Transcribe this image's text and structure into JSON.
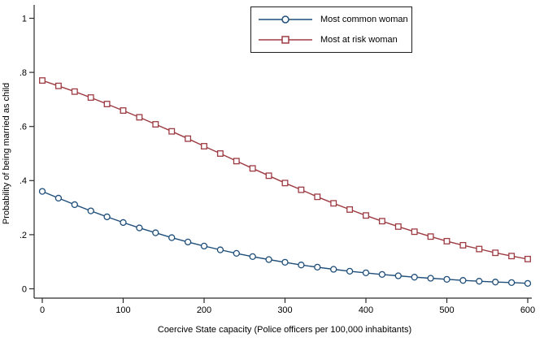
{
  "figure": {
    "background": "#ffffff",
    "axis_color": "#2b2b2b",
    "legend_border_color": "#1f1f1f"
  },
  "chart_data": {
    "type": "line",
    "title": "",
    "xlabel": "Coercive State capacity (Police officers per 100,000 inhabitants)",
    "ylabel": "Probability of being married as child",
    "xlim": [
      0,
      600
    ],
    "ylim": [
      0,
      1
    ],
    "xticks": [
      0,
      100,
      200,
      300,
      400,
      500,
      600
    ],
    "xtick_labels": [
      "0",
      "100",
      "200",
      "300",
      "400",
      "500",
      "600"
    ],
    "yticks": [
      0,
      0.2,
      0.4,
      0.6,
      0.8,
      1
    ],
    "ytick_labels": [
      "0",
      ".2",
      ".4",
      ".6",
      ".8",
      "1"
    ],
    "grid": false,
    "legend_position": "top-center",
    "x": [
      0,
      20,
      40,
      60,
      80,
      100,
      120,
      140,
      160,
      180,
      200,
      220,
      240,
      260,
      280,
      300,
      320,
      340,
      360,
      380,
      400,
      420,
      440,
      460,
      480,
      500,
      520,
      540,
      560,
      580,
      600
    ],
    "series": [
      {
        "name": "Most common woman",
        "marker": "circle",
        "color": "#1e4e79",
        "values": [
          0.36,
          0.335,
          0.311,
          0.288,
          0.266,
          0.245,
          0.225,
          0.207,
          0.189,
          0.173,
          0.158,
          0.144,
          0.131,
          0.119,
          0.108,
          0.098,
          0.088,
          0.08,
          0.072,
          0.065,
          0.059,
          0.053,
          0.048,
          0.043,
          0.039,
          0.035,
          0.031,
          0.028,
          0.025,
          0.023,
          0.02
        ]
      },
      {
        "name": "Most at risk woman",
        "marker": "square",
        "color": "#9d3b42",
        "values": [
          0.77,
          0.75,
          0.729,
          0.707,
          0.683,
          0.659,
          0.634,
          0.608,
          0.582,
          0.555,
          0.527,
          0.5,
          0.472,
          0.445,
          0.418,
          0.391,
          0.366,
          0.34,
          0.316,
          0.293,
          0.271,
          0.25,
          0.23,
          0.211,
          0.193,
          0.176,
          0.161,
          0.147,
          0.133,
          0.121,
          0.11
        ]
      }
    ]
  }
}
